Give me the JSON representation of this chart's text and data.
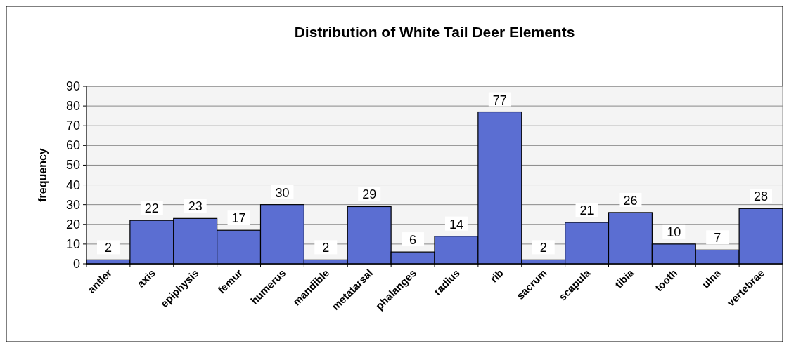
{
  "chart_data": {
    "type": "bar",
    "title": "Distribution of White Tail Deer Elements",
    "ylabel": "frequency",
    "categories": [
      "antler",
      "axis",
      "epiphysis",
      "femur",
      "humerus",
      "mandible",
      "metatarsal",
      "phalanges",
      "radius",
      "rib",
      "sacrum",
      "scapula",
      "tibia",
      "tooth",
      "ulna",
      "vertebrae"
    ],
    "values": [
      2,
      22,
      23,
      17,
      30,
      2,
      29,
      6,
      14,
      77,
      2,
      21,
      26,
      10,
      7,
      28
    ],
    "color": "#5b6ed2",
    "ylim": [
      0,
      90
    ],
    "yticks": [
      0,
      10,
      20,
      30,
      40,
      50,
      60,
      70,
      80,
      90
    ],
    "grid": "y",
    "data_labels": true
  }
}
